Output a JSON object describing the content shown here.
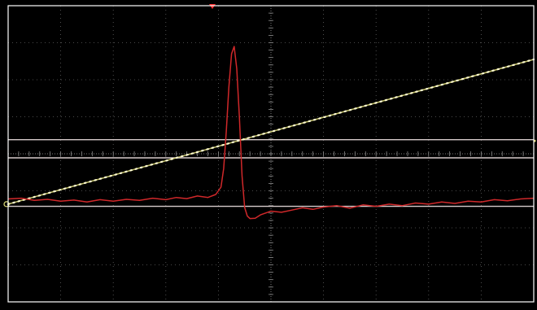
{
  "chart_data": {
    "type": "line",
    "title": "",
    "xlabel": "",
    "ylabel": "",
    "grid": true,
    "grid_divisions": {
      "x": 10,
      "y": 8
    },
    "xlim": [
      0,
      10
    ],
    "ylim": [
      -4,
      4
    ],
    "colors": {
      "background": "#000000",
      "frame": "#ffffff",
      "grid": "#8a8a8a",
      "cursor": "#d8cccc",
      "ramp": "#e2e07a",
      "pulse": "#d0282a",
      "trigger_marker": "#ff3030"
    },
    "cursors_y": [
      -0.11,
      0.38,
      -1.42
    ],
    "series": [
      {
        "color": "#e2e07a",
        "style": "dotted-line",
        "x": [
          0,
          10
        ],
        "y": [
          -1.36,
          2.55
        ]
      },
      {
        "color": "#d0282a",
        "style": "line",
        "x": [
          0,
          0.25,
          0.5,
          0.75,
          1.0,
          1.25,
          1.5,
          1.75,
          2.0,
          2.25,
          2.5,
          2.75,
          3.0,
          3.2,
          3.4,
          3.6,
          3.8,
          3.95,
          4.05,
          4.1,
          4.15,
          4.2,
          4.25,
          4.3,
          4.35,
          4.4,
          4.45,
          4.5,
          4.55,
          4.6,
          4.7,
          4.8,
          4.9,
          5.0,
          5.2,
          5.4,
          5.6,
          5.8,
          6.0,
          6.25,
          6.5,
          6.75,
          7.0,
          7.25,
          7.5,
          7.75,
          8.0,
          8.25,
          8.5,
          8.75,
          9.0,
          9.25,
          9.5,
          9.75,
          10.0
        ],
        "y": [
          -1.22,
          -1.2,
          -1.26,
          -1.23,
          -1.28,
          -1.25,
          -1.3,
          -1.24,
          -1.28,
          -1.23,
          -1.26,
          -1.2,
          -1.24,
          -1.18,
          -1.21,
          -1.14,
          -1.18,
          -1.1,
          -0.9,
          -0.4,
          0.6,
          1.8,
          2.7,
          2.9,
          2.3,
          1.0,
          -0.6,
          -1.45,
          -1.68,
          -1.75,
          -1.74,
          -1.65,
          -1.6,
          -1.55,
          -1.58,
          -1.52,
          -1.46,
          -1.5,
          -1.44,
          -1.4,
          -1.47,
          -1.38,
          -1.42,
          -1.36,
          -1.4,
          -1.33,
          -1.36,
          -1.3,
          -1.34,
          -1.28,
          -1.3,
          -1.24,
          -1.27,
          -1.22,
          -1.2
        ]
      }
    ]
  }
}
